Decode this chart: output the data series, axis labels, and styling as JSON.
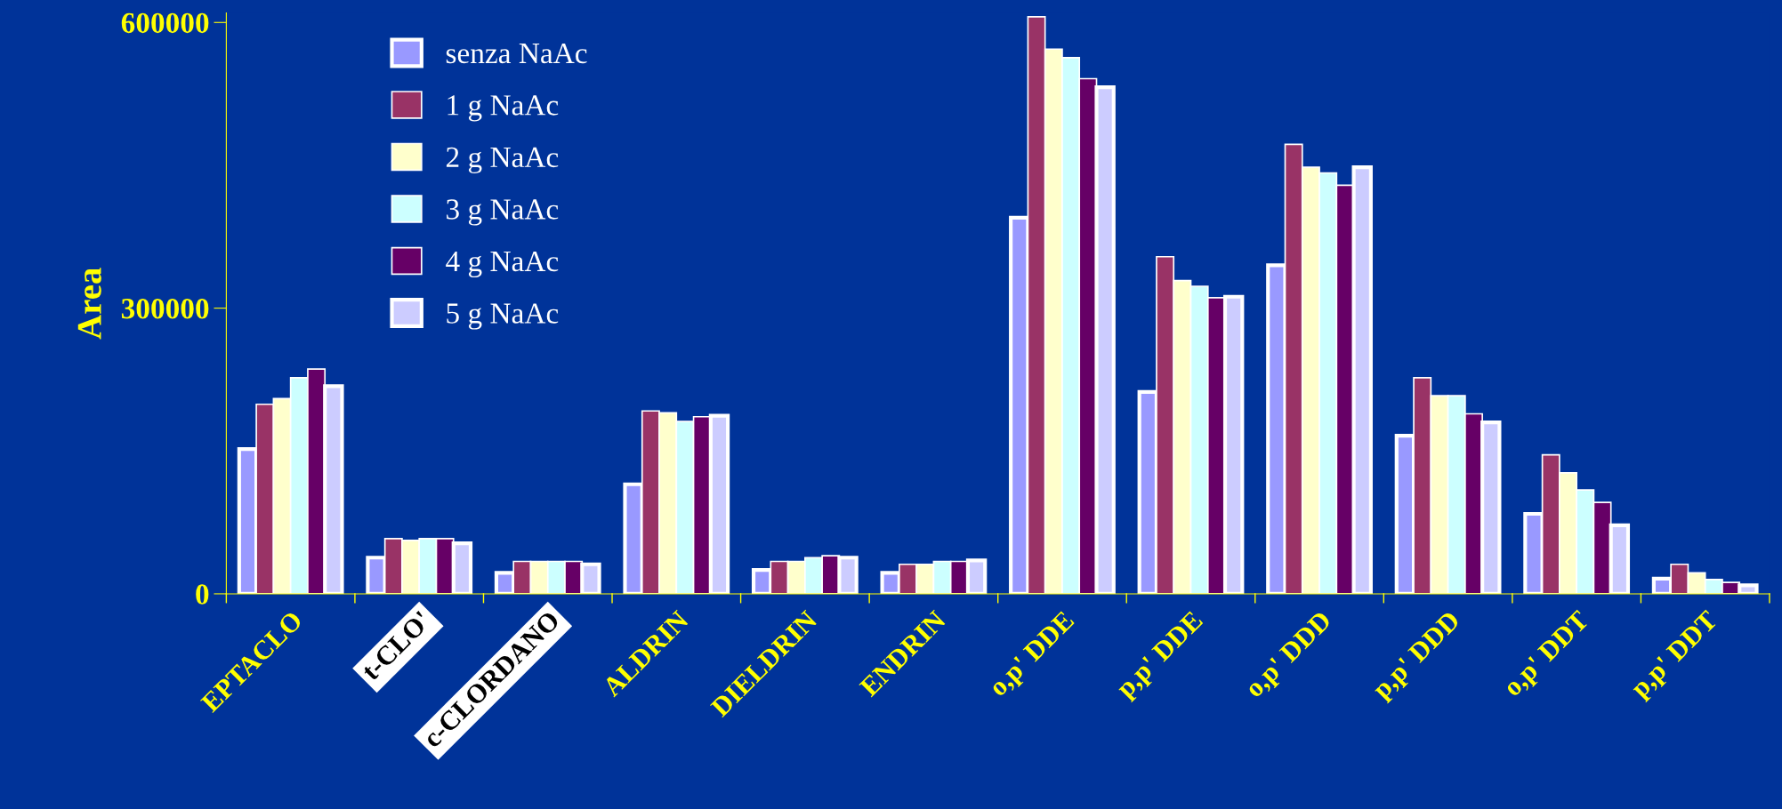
{
  "chart_data": {
    "type": "bar",
    "ylabel": "Area",
    "categories": [
      "EPTACLO",
      "t-CLO'",
      "c-CLORDANO",
      "ALDRIN",
      "DIELDRIN",
      "ENDRIN",
      "o,p' DDE",
      "p,p' DDE",
      "o,p' DDD",
      "p,p' DDD",
      "o,p' DDT",
      "p,p' DDT"
    ],
    "series": [
      {
        "name": "senza NaAc",
        "color": "#9999ff",
        "values": [
          152000,
          38000,
          22000,
          115000,
          25000,
          22000,
          395000,
          212000,
          345000,
          166000,
          84000,
          16000
        ]
      },
      {
        "name": "1 g NaAc",
        "color": "#993366",
        "values": [
          199000,
          58000,
          34000,
          192000,
          34000,
          31000,
          606000,
          354000,
          472000,
          227000,
          146000,
          31000
        ]
      },
      {
        "name": "2 g NaAc",
        "color": "#ffffcc",
        "values": [
          205000,
          56000,
          34000,
          190000,
          34000,
          31000,
          572000,
          329000,
          448000,
          208000,
          127000,
          22000
        ]
      },
      {
        "name": "3 g NaAc",
        "color": "#ccffff",
        "values": [
          227000,
          58000,
          34000,
          181000,
          38000,
          34000,
          563000,
          323000,
          442000,
          208000,
          109000,
          15000
        ]
      },
      {
        "name": "4 g NaAc",
        "color": "#660066",
        "values": [
          236000,
          58000,
          34000,
          186000,
          40000,
          34000,
          541000,
          311000,
          429000,
          189000,
          96000,
          12000
        ]
      },
      {
        "name": "5 g NaAc",
        "color": "#ccccff",
        "values": [
          218000,
          53000,
          31000,
          187000,
          38000,
          35000,
          532000,
          312000,
          448000,
          180000,
          72000,
          9000
        ]
      }
    ],
    "ylim": [
      0,
      610000
    ],
    "yticks": [
      0,
      300000,
      600000
    ],
    "grid": false,
    "legend": "top left"
  }
}
